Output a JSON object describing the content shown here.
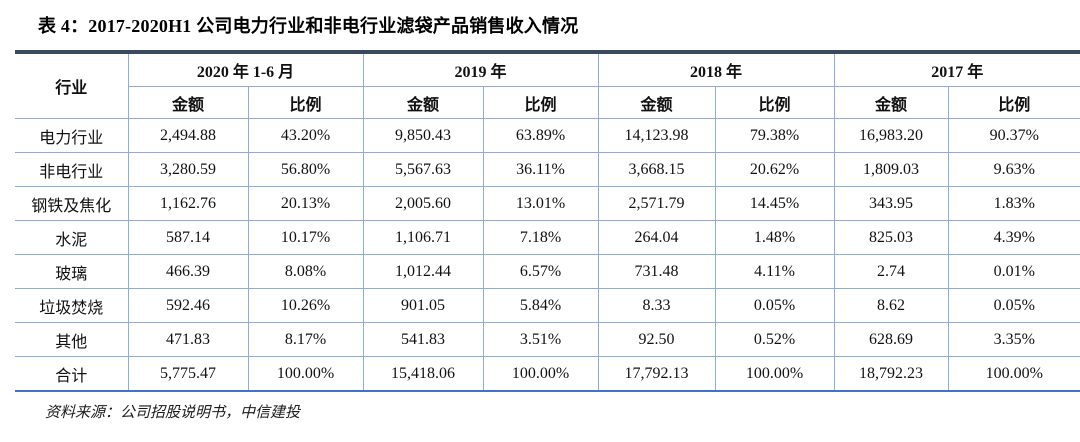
{
  "title": "表 4：2017-2020H1 公司电力行业和非电行业滤袋产品销售收入情况",
  "source": "资料来源：公司招股说明书，中信建投",
  "colors": {
    "top_rule": "#3A4A5E",
    "grid_line": "#8FAADC",
    "bottom_rule": "#4472C4",
    "text": "#111111",
    "background": "#FFFFFF"
  },
  "table": {
    "industry_header": "行业",
    "amount_label": "金额",
    "ratio_label": "比例",
    "periods": [
      "2020 年 1-6 月",
      "2019 年",
      "2018 年",
      "2017 年"
    ],
    "rows": [
      {
        "industry": "电力行业",
        "cells": [
          "2,494.88",
          "43.20%",
          "9,850.43",
          "63.89%",
          "14,123.98",
          "79.38%",
          "16,983.20",
          "90.37%"
        ]
      },
      {
        "industry": "非电行业",
        "cells": [
          "3,280.59",
          "56.80%",
          "5,567.63",
          "36.11%",
          "3,668.15",
          "20.62%",
          "1,809.03",
          "9.63%"
        ]
      },
      {
        "industry": "钢铁及焦化",
        "cells": [
          "1,162.76",
          "20.13%",
          "2,005.60",
          "13.01%",
          "2,571.79",
          "14.45%",
          "343.95",
          "1.83%"
        ]
      },
      {
        "industry": "水泥",
        "cells": [
          "587.14",
          "10.17%",
          "1,106.71",
          "7.18%",
          "264.04",
          "1.48%",
          "825.03",
          "4.39%"
        ]
      },
      {
        "industry": "玻璃",
        "cells": [
          "466.39",
          "8.08%",
          "1,012.44",
          "6.57%",
          "731.48",
          "4.11%",
          "2.74",
          "0.01%"
        ]
      },
      {
        "industry": "垃圾焚烧",
        "cells": [
          "592.46",
          "10.26%",
          "901.05",
          "5.84%",
          "8.33",
          "0.05%",
          "8.62",
          "0.05%"
        ]
      },
      {
        "industry": "其他",
        "cells": [
          "471.83",
          "8.17%",
          "541.83",
          "3.51%",
          "92.50",
          "0.52%",
          "628.69",
          "3.35%"
        ]
      },
      {
        "industry": "合计",
        "cells": [
          "5,775.47",
          "100.00%",
          "15,418.06",
          "100.00%",
          "17,792.13",
          "100.00%",
          "18,792.23",
          "100.00%"
        ]
      }
    ]
  }
}
